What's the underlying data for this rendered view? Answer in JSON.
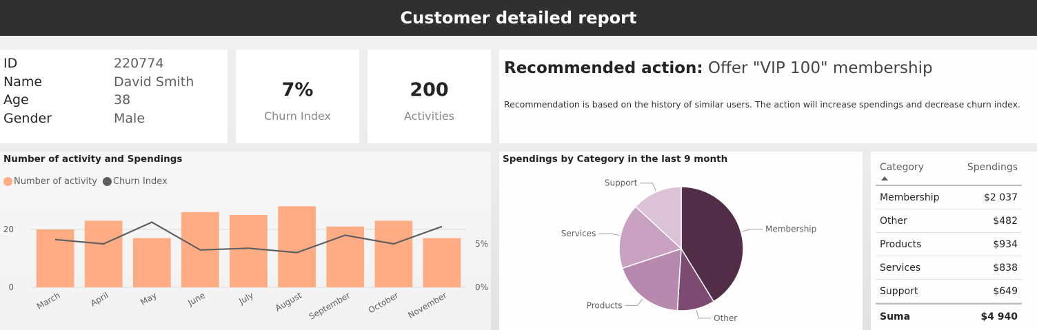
{
  "header": {
    "title": "Customer detailed report"
  },
  "customer": {
    "fields": [
      {
        "label": "ID",
        "value": "220774"
      },
      {
        "label": "Name",
        "value": "David Smith"
      },
      {
        "label": "Age",
        "value": "38"
      },
      {
        "label": "Gender",
        "value": "Male"
      }
    ]
  },
  "kpis": {
    "churn": {
      "value": "7%",
      "label": "Churn Index"
    },
    "activities": {
      "value": "200",
      "label": "Activities"
    }
  },
  "recommendation": {
    "title": "Recommended action:",
    "action": "Offer \"VIP 100\" membership",
    "description": "Recommendation is based on the history of similar users. The action will increase spendings and decrease churn index."
  },
  "colors": {
    "bar": "#ffac84",
    "line": "#5f5f5f",
    "pie": [
      "#522d47",
      "#7d4a72",
      "#b889ae",
      "#c9a2c1",
      "#dcc2d6"
    ]
  },
  "chart_data": [
    {
      "type": "bar",
      "title": "Number of activity and Spendings",
      "legend_placement": "top-left",
      "categories": [
        "March",
        "April",
        "May",
        "June",
        "July",
        "August",
        "September",
        "October",
        "November"
      ],
      "series": [
        {
          "name": "Number of activity",
          "type": "bar",
          "axis": "left",
          "values": [
            20,
            23,
            17,
            26,
            25,
            28,
            21,
            23,
            17
          ]
        },
        {
          "name": "Churn Index",
          "type": "line",
          "axis": "right",
          "values": [
            5.5,
            5.0,
            7.5,
            4.3,
            4.5,
            4.0,
            6.0,
            5.0,
            7.0
          ]
        }
      ],
      "y_left": {
        "ticks": [
          "0",
          "20"
        ],
        "ylim": [
          0,
          30
        ]
      },
      "y_right": {
        "ticks": [
          "0%",
          "5%"
        ],
        "ylim": [
          0,
          10
        ]
      },
      "grid": true
    },
    {
      "type": "pie",
      "title": "Spendings by Category in the last 9 month",
      "slices": [
        {
          "label": "Membership",
          "value": 2037
        },
        {
          "label": "Other",
          "value": 482
        },
        {
          "label": "Products",
          "value": 934
        },
        {
          "label": "Services",
          "value": 838
        },
        {
          "label": "Support",
          "value": 649
        }
      ]
    },
    {
      "type": "table",
      "columns": [
        "Category",
        "Spendings"
      ],
      "rows": [
        {
          "category": "Membership",
          "spendings": "$2 037"
        },
        {
          "category": "Other",
          "spendings": "$482"
        },
        {
          "category": "Products",
          "spendings": "$934"
        },
        {
          "category": "Services",
          "spendings": "$838"
        },
        {
          "category": "Support",
          "spendings": "$649"
        }
      ],
      "total": {
        "label": "Suma",
        "value": "$4 940"
      }
    }
  ]
}
